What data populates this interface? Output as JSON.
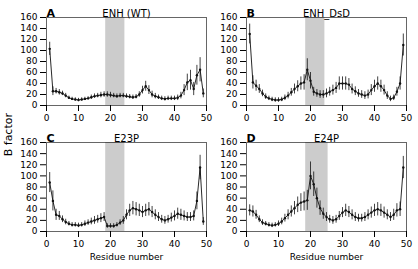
{
  "chart_data": {
    "type": "line",
    "xlabel": "Residue number",
    "ylabel": "B factor",
    "xlim": [
      0,
      50
    ],
    "xticks": [
      0,
      10,
      20,
      30,
      40,
      50
    ],
    "ylim": [
      0,
      160
    ],
    "yticks": [
      0,
      20,
      40,
      60,
      80,
      100,
      120,
      140,
      160
    ],
    "marker": "circle",
    "line_style": "solid",
    "x": [
      1,
      2,
      3,
      4,
      5,
      6,
      7,
      8,
      9,
      10,
      11,
      12,
      13,
      14,
      15,
      16,
      17,
      18,
      19,
      20,
      21,
      22,
      23,
      24,
      25,
      26,
      27,
      28,
      29,
      30,
      31,
      32,
      33,
      34,
      35,
      36,
      37,
      38,
      39,
      40,
      41,
      42,
      43,
      44,
      45,
      46,
      47,
      48,
      49
    ],
    "panels": [
      {
        "annotation": "A",
        "title": "ENH (WT)",
        "color": "#111111",
        "shaded_region": {
          "x": [
            18.5,
            24.5
          ],
          "color": "#cccccc"
        },
        "values": [
          103,
          26,
          26,
          24,
          22,
          18,
          14,
          12,
          11,
          10,
          11,
          12,
          13,
          15,
          17,
          18,
          19,
          20,
          20,
          19,
          18,
          17,
          18,
          18,
          17,
          16,
          15,
          16,
          20,
          28,
          35,
          28,
          20,
          17,
          15,
          13,
          12,
          13,
          13,
          13,
          14,
          18,
          28,
          42,
          46,
          30,
          55,
          65,
          22
        ],
        "error": [
          12,
          8,
          5,
          5,
          4,
          4,
          3,
          3,
          3,
          3,
          3,
          3,
          3,
          4,
          4,
          4,
          5,
          5,
          5,
          5,
          4,
          4,
          4,
          4,
          4,
          4,
          4,
          4,
          5,
          7,
          9,
          8,
          6,
          5,
          4,
          4,
          4,
          4,
          4,
          4,
          5,
          6,
          10,
          15,
          18,
          12,
          18,
          22,
          8
        ]
      },
      {
        "annotation": "B",
        "title": "ENH_DsD",
        "color": "#111111",
        "shaded_region": {
          "x": [
            18.5,
            24.5
          ],
          "color": "#cccccc"
        },
        "values": [
          130,
          42,
          36,
          30,
          22,
          16,
          13,
          11,
          10,
          10,
          11,
          14,
          18,
          24,
          30,
          35,
          40,
          42,
          65,
          45,
          25,
          22,
          20,
          20,
          22,
          25,
          28,
          32,
          40,
          40,
          40,
          38,
          30,
          26,
          22,
          20,
          18,
          20,
          28,
          35,
          40,
          35,
          28,
          18,
          12,
          14,
          25,
          40,
          110
        ],
        "error": [
          18,
          12,
          10,
          8,
          6,
          5,
          4,
          4,
          4,
          4,
          4,
          5,
          6,
          7,
          9,
          10,
          12,
          14,
          20,
          15,
          8,
          7,
          7,
          7,
          8,
          8,
          9,
          10,
          12,
          12,
          12,
          11,
          9,
          8,
          7,
          7,
          7,
          8,
          10,
          11,
          12,
          11,
          9,
          7,
          5,
          5,
          8,
          12,
          20
        ]
      },
      {
        "annotation": "C",
        "title": "E23P",
        "color": "#111111",
        "shaded_region": {
          "x": [
            18.5,
            24.5
          ],
          "color": "#cccccc"
        },
        "values": [
          88,
          55,
          30,
          28,
          22,
          17,
          14,
          12,
          12,
          11,
          12,
          14,
          16,
          18,
          20,
          22,
          24,
          26,
          10,
          10,
          10,
          12,
          16,
          20,
          30,
          38,
          42,
          40,
          38,
          35,
          38,
          40,
          35,
          30,
          26,
          22,
          20,
          22,
          25,
          28,
          32,
          30,
          28,
          26,
          26,
          28,
          55,
          115,
          18
        ],
        "error": [
          18,
          18,
          10,
          8,
          6,
          5,
          4,
          4,
          4,
          4,
          4,
          5,
          5,
          6,
          7,
          7,
          8,
          8,
          4,
          4,
          4,
          4,
          5,
          7,
          9,
          11,
          12,
          12,
          11,
          10,
          11,
          12,
          10,
          9,
          8,
          7,
          7,
          7,
          8,
          9,
          10,
          10,
          9,
          8,
          8,
          9,
          16,
          22,
          7
        ]
      },
      {
        "annotation": "D",
        "title": "E24P",
        "color": "#111111",
        "shaded_region": {
          "x": [
            18.5,
            25.5
          ],
          "color": "#cccccc"
        },
        "values": [
          38,
          36,
          30,
          22,
          16,
          14,
          12,
          11,
          12,
          14,
          18,
          24,
          30,
          36,
          42,
          48,
          52,
          54,
          56,
          100,
          85,
          60,
          42,
          32,
          26,
          22,
          20,
          22,
          28,
          34,
          38,
          35,
          30,
          26,
          24,
          24,
          26,
          30,
          34,
          38,
          40,
          38,
          34,
          30,
          26,
          30,
          38,
          40,
          115
        ],
        "error": [
          10,
          10,
          8,
          6,
          5,
          4,
          4,
          4,
          4,
          5,
          6,
          7,
          9,
          10,
          12,
          14,
          16,
          17,
          18,
          25,
          22,
          18,
          13,
          10,
          8,
          7,
          7,
          7,
          8,
          9,
          11,
          10,
          9,
          8,
          7,
          7,
          8,
          9,
          10,
          11,
          12,
          11,
          10,
          9,
          8,
          10,
          12,
          13,
          20
        ]
      }
    ]
  }
}
